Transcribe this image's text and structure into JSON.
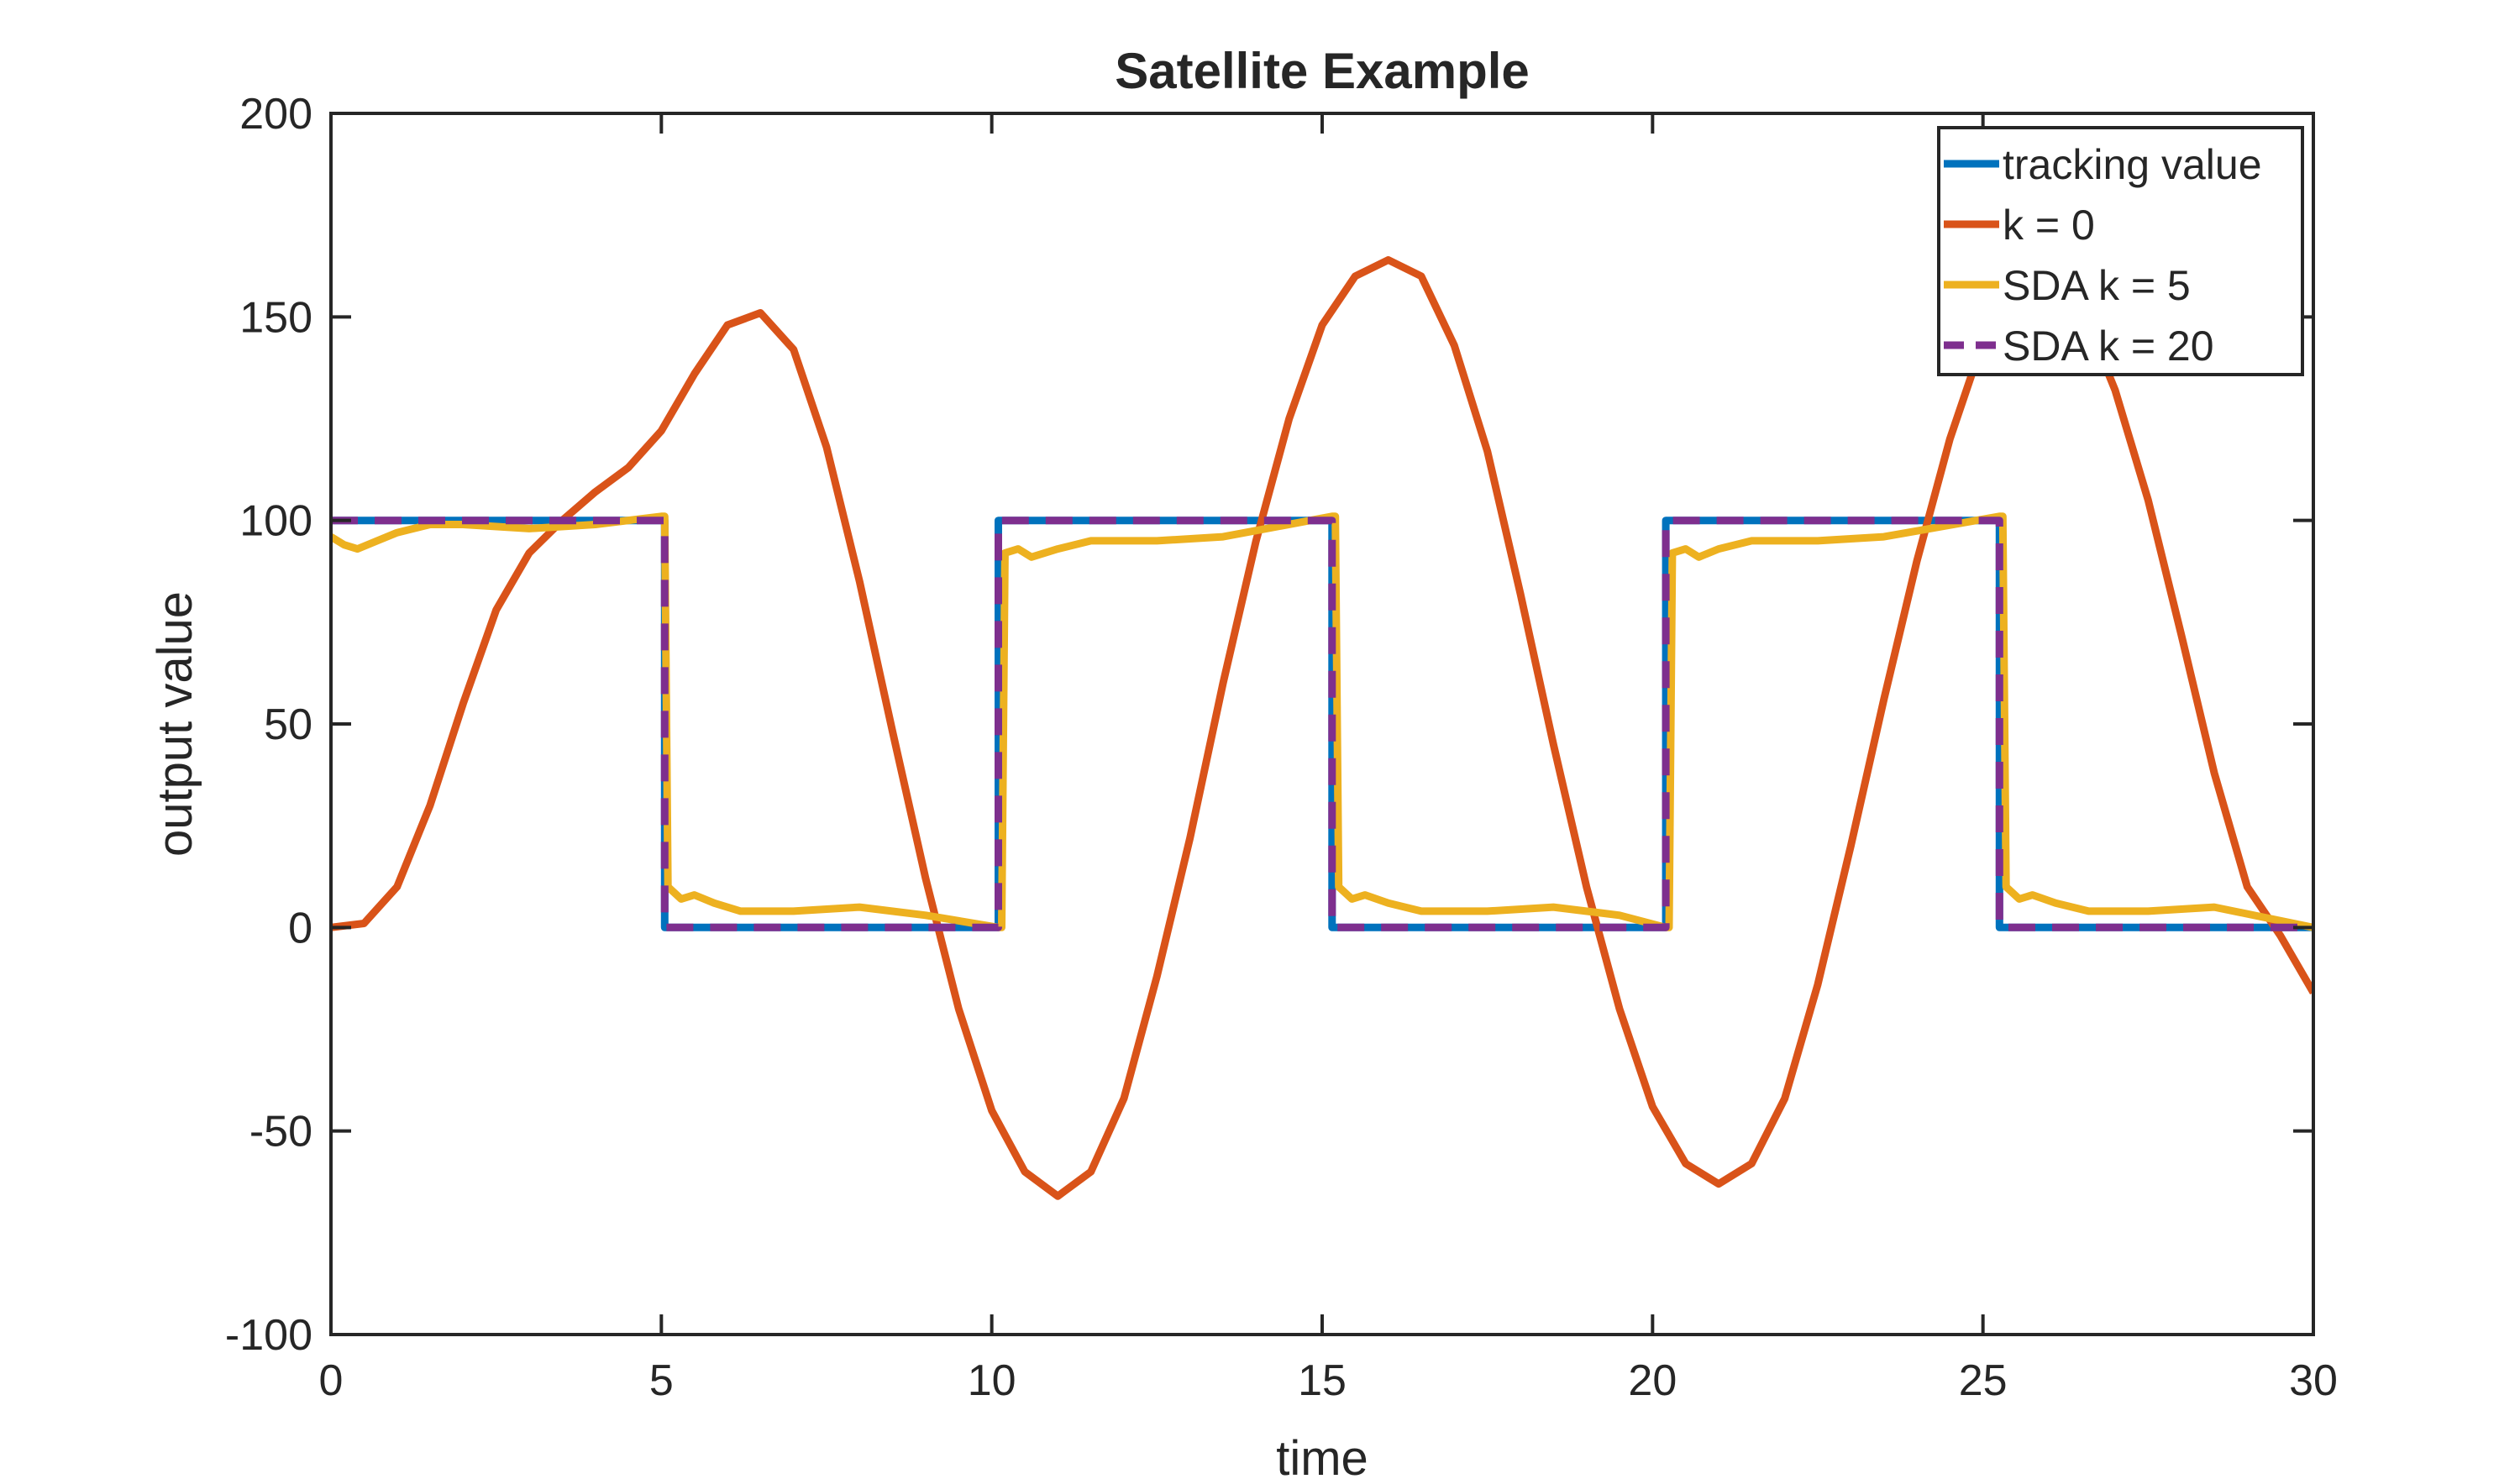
{
  "chart_data": {
    "type": "line",
    "title": "Satellite Example",
    "xlabel": "time",
    "ylabel": "output value",
    "xlim": [
      0,
      30
    ],
    "ylim": [
      -100,
      200
    ],
    "xticks": [
      0,
      5,
      10,
      15,
      20,
      25,
      30
    ],
    "yticks": [
      -100,
      -50,
      0,
      50,
      100,
      150,
      200
    ],
    "xtick_labels": [
      "0",
      "5",
      "10",
      "15",
      "20",
      "25",
      "30"
    ],
    "ytick_labels": [
      "-100",
      "-50",
      "0",
      "50",
      "100",
      "150",
      "200"
    ],
    "grid": false,
    "legend_position": "top-right",
    "series": [
      {
        "name": "tracking value",
        "color": "#0072BD",
        "style": "solid",
        "x": [
          0,
          5.05,
          5.05,
          10.1,
          10.1,
          15.15,
          15.15,
          20.2,
          20.2,
          25.25,
          25.25,
          30
        ],
        "y": [
          100,
          100,
          0,
          0,
          100,
          100,
          0,
          0,
          100,
          100,
          0,
          0
        ]
      },
      {
        "name": "k = 0",
        "color": "#D95319",
        "style": "solid",
        "x": [
          0,
          0.5,
          1,
          1.5,
          2,
          2.5,
          3,
          3.5,
          4,
          4.5,
          5,
          5.5,
          6,
          6.5,
          7,
          7.5,
          8,
          8.5,
          9,
          9.5,
          10,
          10.5,
          11,
          11.5,
          12,
          12.5,
          13,
          13.5,
          14,
          14.5,
          15,
          15.5,
          16,
          16.5,
          17,
          17.5,
          18,
          18.5,
          19,
          19.5,
          20,
          20.5,
          21,
          21.5,
          22,
          22.5,
          23,
          23.5,
          24,
          24.5,
          25,
          25.5,
          26,
          26.5,
          27,
          27.5,
          28,
          28.5,
          29,
          29.5,
          30
        ],
        "y": [
          0,
          1,
          10,
          30,
          55,
          78,
          92,
          100,
          107,
          113,
          122,
          136,
          148,
          151,
          142,
          118,
          85,
          48,
          12,
          -20,
          -45,
          -60,
          -66,
          -60,
          -42,
          -12,
          22,
          60,
          95,
          125,
          148,
          160,
          164,
          160,
          143,
          117,
          82,
          45,
          10,
          -20,
          -44,
          -58,
          -63,
          -58,
          -42,
          -14,
          20,
          56,
          90,
          120,
          144,
          158,
          160,
          152,
          132,
          105,
          72,
          38,
          10,
          -2,
          -16
        ]
      },
      {
        "name": "SDA k = 5",
        "color": "#EDB120",
        "style": "solid",
        "x": [
          0,
          0.2,
          0.4,
          0.7,
          1.0,
          1.5,
          2.0,
          3.0,
          4.0,
          5.0,
          5.05,
          5.1,
          5.3,
          5.5,
          5.8,
          6.2,
          7.0,
          8.0,
          9.0,
          10.1,
          10.15,
          10.2,
          10.4,
          10.6,
          11.0,
          11.5,
          12.5,
          13.5,
          15.15,
          15.2,
          15.25,
          15.45,
          15.65,
          16.0,
          16.5,
          17.5,
          18.5,
          19.5,
          20.2,
          20.25,
          20.3,
          20.5,
          20.7,
          21.0,
          21.5,
          22.5,
          23.5,
          25.25,
          25.3,
          25.35,
          25.55,
          25.75,
          26.1,
          26.6,
          27.5,
          28.5,
          30
        ],
        "y": [
          96,
          94,
          93,
          95,
          97,
          99,
          99,
          98,
          99,
          101,
          101,
          10,
          7,
          8,
          6,
          4,
          4,
          5,
          3,
          0,
          0,
          92,
          93,
          91,
          93,
          95,
          95,
          96,
          101,
          101,
          10,
          7,
          8,
          6,
          4,
          4,
          5,
          3,
          0,
          0,
          92,
          93,
          91,
          93,
          95,
          95,
          96,
          101,
          101,
          10,
          7,
          8,
          6,
          4,
          4,
          5,
          0
        ]
      },
      {
        "name": "SDA k = 20",
        "color": "#7E2F8E",
        "style": "dashed",
        "x": [
          0,
          5.05,
          5.05,
          10.1,
          10.1,
          15.15,
          15.15,
          20.2,
          20.2,
          25.25,
          25.25,
          30
        ],
        "y": [
          100,
          100,
          0,
          0,
          100,
          100,
          0,
          0,
          100,
          100,
          0,
          0
        ]
      }
    ]
  }
}
